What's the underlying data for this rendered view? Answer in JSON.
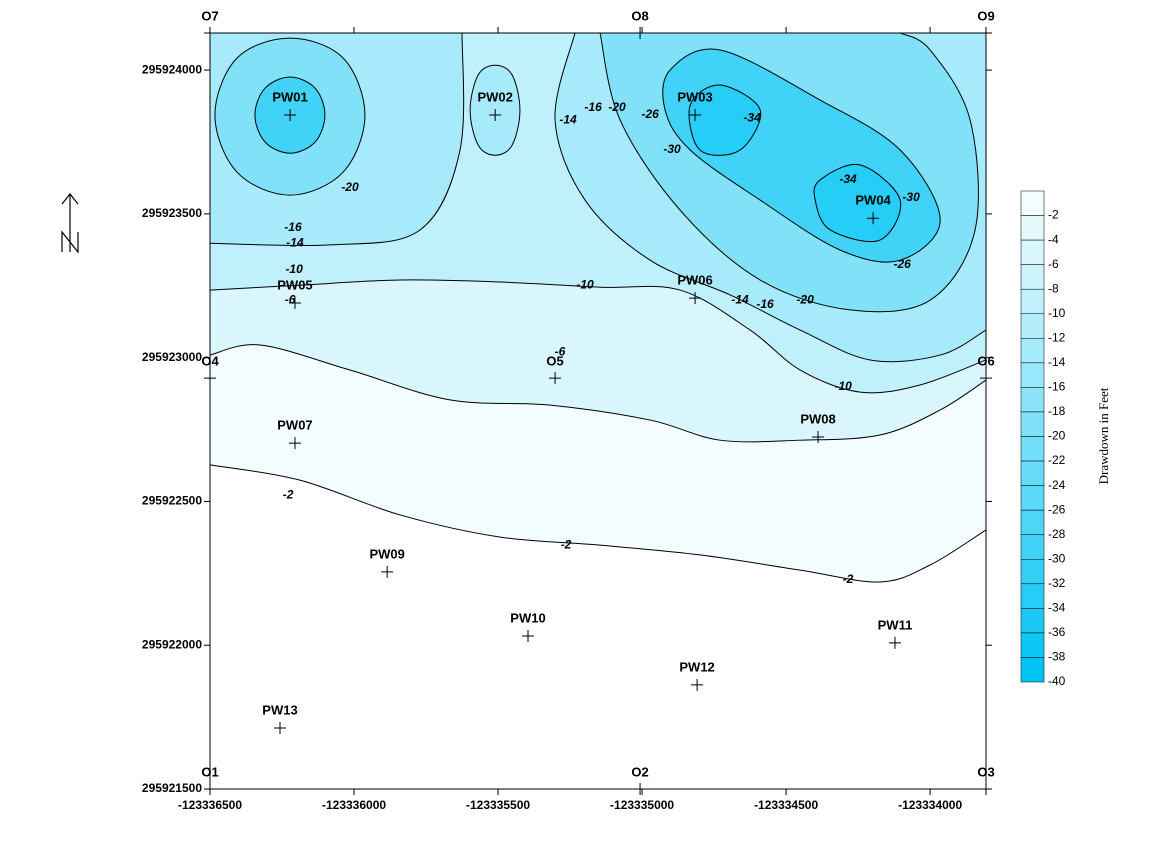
{
  "chart_data": {
    "type": "contour",
    "xlim": [
      -123336500,
      -123333806
    ],
    "ylim": [
      295921500,
      295924129
    ],
    "xticks": [
      -123336500,
      -123336000,
      -123335500,
      -123335000,
      -123334500,
      -123334000
    ],
    "yticks": [
      295921500,
      295922000,
      295922500,
      295923000,
      295923500,
      295924000
    ],
    "line_color": "#000000",
    "contours": [
      {
        "level": -2,
        "x": [
          -123336500,
          -123336188,
          -123335840,
          -123335493,
          -123335146,
          -123334799,
          -123334451,
          -123334174,
          -123334000,
          -123333806
        ],
        "y": [
          295922627,
          295922574,
          295922453,
          295922376,
          295922348,
          295922314,
          295922261,
          295922220,
          295922279,
          295922401
        ]
      },
      {
        "level": -6,
        "x": [
          -123336500,
          -123336326,
          -123336014,
          -123335667,
          -123335319,
          -123334972,
          -123334729,
          -123334451,
          -123334174,
          -123333965,
          -123333806
        ],
        "y": [
          295923009,
          295923044,
          295922957,
          295922853,
          295922835,
          295922783,
          295922713,
          295922713,
          295922731,
          295922818,
          295922922
        ]
      },
      {
        "level": -10,
        "x": [
          -123336500,
          -123336188,
          -123335840,
          -123335493,
          -123335146,
          -123334868,
          -123334625,
          -123334451,
          -123334243,
          -123334035,
          -123333806
        ],
        "y": [
          295923235,
          295923252,
          295923270,
          295923263,
          295923245,
          295923235,
          295923096,
          295922957,
          295922880,
          295922905,
          295922992
        ]
      },
      {
        "level": -14,
        "x": [
          -123336500,
          -123336083,
          -123335771,
          -123335632,
          -123335625
        ],
        "y": [
          295923398,
          295923392,
          295923444,
          295923722,
          295924129
        ]
      },
      {
        "level": -14,
        "x": [
          -123335424,
          -123335451,
          -123335510,
          -123335569,
          -123335597,
          -123335569,
          -123335510,
          -123335451,
          -123335424
        ],
        "y": [
          295923861,
          295923739,
          295923704,
          295923739,
          295923861,
          295923983,
          295924017,
          295923983,
          295923861
        ]
      },
      {
        "level": -14,
        "x": [
          -123335233,
          -123335302,
          -123335198,
          -123334972,
          -123334694,
          -123334451,
          -123334208,
          -123333965,
          -123333806
        ],
        "y": [
          295924129,
          295923826,
          295923548,
          295923339,
          295923218,
          295923096,
          295922992,
          295923009,
          295923096
        ]
      },
      {
        "level": -20,
        "x": [
          -123335962,
          -123336038,
          -123336222,
          -123336406,
          -123336483,
          -123336406,
          -123336222,
          -123336038,
          -123335962
        ],
        "y": [
          295923844,
          295923645,
          295923565,
          295923645,
          295923844,
          295924042,
          295924111,
          295924042,
          295923844
        ]
      },
      {
        "level": -20,
        "x": [
          -123335146,
          -123335076,
          -123334868,
          -123334590,
          -123334278,
          -123334000,
          -123333844,
          -123333861,
          -123334000,
          -123334104
        ],
        "y": [
          295924129,
          295923826,
          295923513,
          295923270,
          295923166,
          295923200,
          295923444,
          295923826,
          295924070,
          295924129
        ]
      },
      {
        "level": -30,
        "x": [
          -123336101,
          -123336135,
          -123336222,
          -123336309,
          -123336344,
          -123336309,
          -123336222,
          -123336135,
          -123336101
        ],
        "y": [
          295923844,
          295923750,
          295923711,
          295923750,
          295923844,
          295923937,
          295923976,
          295923937,
          295923844
        ]
      },
      {
        "level": -30,
        "x": [
          -123334903,
          -123334729,
          -123334382,
          -123334104,
          -123333965,
          -123334104,
          -123334312,
          -123334590,
          -123334833,
          -123334920,
          -123334903
        ],
        "y": [
          295924000,
          295924070,
          295923896,
          295923722,
          295923478,
          295923339,
          295923374,
          295923548,
          295923722,
          295923861,
          295924000
        ]
      },
      {
        "level": -34,
        "x": [
          -123334833,
          -123334729,
          -123334590,
          -123334660,
          -123334799,
          -123334833
        ],
        "y": [
          295923878,
          295923948,
          295923861,
          295923722,
          295923722,
          295923878
        ]
      },
      {
        "level": -34,
        "x": [
          -123334382,
          -123334243,
          -123334104,
          -123334174,
          -123334347,
          -123334399,
          -123334382
        ],
        "y": [
          295923618,
          295923670,
          295923548,
          295923409,
          295923444,
          295923548,
          295923618
        ]
      }
    ],
    "contour_labels": [
      {
        "value": -2,
        "x": -123336229,
        "y": 295922522
      },
      {
        "value": -2,
        "x": -123335264,
        "y": 295922348
      },
      {
        "value": -2,
        "x": -123334285,
        "y": 295922227
      },
      {
        "value": -6,
        "x": -123336222,
        "y": 295923200
      },
      {
        "value": -6,
        "x": -123335285,
        "y": 295923019
      },
      {
        "value": -10,
        "x": -123336208,
        "y": 295923305
      },
      {
        "value": -10,
        "x": -123335198,
        "y": 295923252
      },
      {
        "value": -10,
        "x": -123334302,
        "y": 295922898
      },
      {
        "value": -14,
        "x": -123336205,
        "y": 295923398
      },
      {
        "value": -14,
        "x": -123335257,
        "y": 295923826
      },
      {
        "value": -14,
        "x": -123334660,
        "y": 295923200
      },
      {
        "value": -16,
        "x": -123336212,
        "y": 295923451
      },
      {
        "value": -16,
        "x": -123335170,
        "y": 295923868
      },
      {
        "value": -16,
        "x": -123334573,
        "y": 295923183
      },
      {
        "value": -20,
        "x": -123336014,
        "y": 295923590
      },
      {
        "value": -20,
        "x": -123335087,
        "y": 295923868
      },
      {
        "value": -20,
        "x": -123334434,
        "y": 295923200
      },
      {
        "value": -26,
        "x": -123334972,
        "y": 295923844
      },
      {
        "value": -26,
        "x": -123334097,
        "y": 295923322
      },
      {
        "value": -30,
        "x": -123334896,
        "y": 295923722
      },
      {
        "value": -30,
        "x": -123334066,
        "y": 295923555
      },
      {
        "value": -34,
        "x": -123334618,
        "y": 295923833
      },
      {
        "value": -34,
        "x": -123334285,
        "y": 295923618
      }
    ],
    "wells": [
      {
        "name": "PW01",
        "x": -123336222,
        "y": 295923844
      },
      {
        "name": "PW02",
        "x": -123335510,
        "y": 295923844
      },
      {
        "name": "PW03",
        "x": -123334816,
        "y": 295923844
      },
      {
        "name": "PW04",
        "x": -123334198,
        "y": 295923485
      },
      {
        "name": "PW05",
        "x": -123336205,
        "y": 295923190
      },
      {
        "name": "PW06",
        "x": -123334816,
        "y": 295923207
      },
      {
        "name": "PW07",
        "x": -123336205,
        "y": 295922703
      },
      {
        "name": "PW08",
        "x": -123334389,
        "y": 295922724
      },
      {
        "name": "PW09",
        "x": -123335885,
        "y": 295922255
      },
      {
        "name": "PW10",
        "x": -123335396,
        "y": 295922032
      },
      {
        "name": "PW11",
        "x": -123334122,
        "y": 295922008
      },
      {
        "name": "PW12",
        "x": -123334809,
        "y": 295921862
      },
      {
        "name": "PW13",
        "x": -123336257,
        "y": 295921712
      }
    ],
    "observation_points": [
      {
        "name": "O1",
        "x": -123336500,
        "y": 295921500
      },
      {
        "name": "O2",
        "x": -123335007,
        "y": 295921500
      },
      {
        "name": "O3",
        "x": -123333806,
        "y": 295921500
      },
      {
        "name": "O4",
        "x": -123336500,
        "y": 295922929
      },
      {
        "name": "O5",
        "x": -123335302,
        "y": 295922929
      },
      {
        "name": "O6",
        "x": -123333806,
        "y": 295922929
      },
      {
        "name": "O7",
        "x": -123336500,
        "y": 295924129
      },
      {
        "name": "O8",
        "x": -123335007,
        "y": 295924129
      },
      {
        "name": "O9",
        "x": -123333806,
        "y": 295924129
      }
    ],
    "colorbar": {
      "label": "Drawdown in Feet",
      "levels": [
        -2,
        -4,
        -6,
        -8,
        -10,
        -12,
        -14,
        -16,
        -18,
        -20,
        -22,
        -24,
        -26,
        -28,
        -30,
        -32,
        -34,
        -36,
        -38,
        -40
      ],
      "colors": [
        "#f3fcfe",
        "#00c4f4"
      ]
    }
  }
}
